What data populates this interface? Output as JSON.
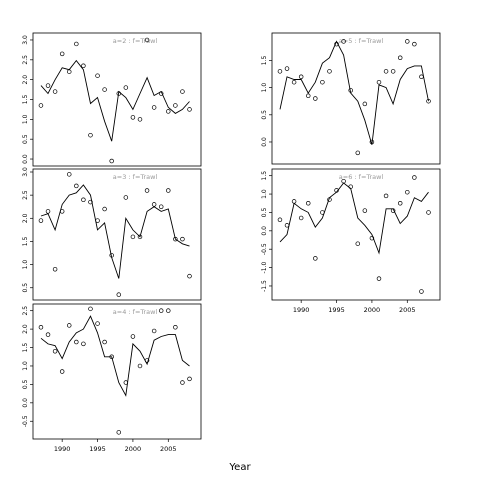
{
  "figure": {
    "xlabel": "Year"
  },
  "chart_data": [
    {
      "type": "scatter",
      "title": "a=2  :  f=Trawl",
      "ylim": [
        -0.1,
        3.1
      ],
      "yticks": [
        0.0,
        0.5,
        1.0,
        1.5,
        2.0,
        2.5,
        3.0
      ],
      "xlim": [
        1986.3,
        2009.2
      ],
      "xticks": [],
      "series": [
        {
          "type": "line",
          "x": [
            1987,
            1988,
            1989,
            1990,
            1991,
            1992,
            1993,
            1994,
            1995,
            1996,
            1997,
            1998,
            1999,
            2000,
            2001,
            2002,
            2003,
            2004,
            2005,
            2006,
            2007,
            2008
          ],
          "y": [
            1.85,
            1.65,
            2.0,
            2.3,
            2.25,
            2.48,
            2.25,
            1.4,
            1.55,
            0.95,
            0.45,
            1.7,
            1.55,
            1.25,
            1.65,
            2.05,
            1.6,
            1.7,
            1.3,
            1.15,
            1.25,
            1.45
          ]
        },
        {
          "type": "points",
          "x": [
            1987,
            1988,
            1989,
            1990,
            1991,
            1992,
            1993,
            1994,
            1995,
            1996,
            1997,
            1998,
            1999,
            2000,
            2001,
            2002,
            2003,
            2004,
            2005,
            2006,
            2007,
            2008
          ],
          "y": [
            1.35,
            1.85,
            1.7,
            2.65,
            2.2,
            2.9,
            2.35,
            0.6,
            2.1,
            1.75,
            -0.05,
            1.65,
            1.8,
            1.05,
            1.0,
            3.0,
            1.3,
            1.65,
            1.2,
            1.35,
            1.7,
            1.25
          ]
        }
      ]
    },
    {
      "type": "scatter",
      "title": "a=3  :  f=Trawl",
      "ylim": [
        0.3,
        3.0
      ],
      "yticks": [
        0.5,
        1.0,
        1.5,
        2.0,
        2.5,
        3.0
      ],
      "xlim": [
        1986.3,
        2009.2
      ],
      "xticks": [],
      "series": [
        {
          "type": "line",
          "x": [
            1987,
            1988,
            1989,
            1990,
            1991,
            1992,
            1993,
            1994,
            1995,
            1996,
            1997,
            1998,
            1999,
            2000,
            2001,
            2002,
            2003,
            2004,
            2005,
            2006,
            2007,
            2008
          ],
          "y": [
            2.05,
            2.1,
            1.75,
            2.3,
            2.5,
            2.55,
            2.72,
            2.5,
            1.75,
            1.9,
            1.15,
            0.7,
            2.0,
            1.75,
            1.6,
            2.15,
            2.25,
            2.15,
            2.2,
            1.55,
            1.45,
            1.4
          ]
        },
        {
          "type": "points",
          "x": [
            1987,
            1988,
            1989,
            1990,
            1991,
            1992,
            1993,
            1994,
            1995,
            1996,
            1997,
            1998,
            1999,
            2000,
            2001,
            2002,
            2003,
            2004,
            2005,
            2006,
            2007,
            2008
          ],
          "y": [
            1.95,
            2.15,
            0.9,
            2.15,
            2.95,
            2.7,
            2.4,
            2.35,
            1.95,
            2.2,
            1.2,
            0.35,
            2.45,
            1.6,
            1.6,
            2.6,
            2.3,
            2.25,
            2.6,
            1.55,
            1.55,
            0.75
          ]
        }
      ]
    },
    {
      "type": "scatter",
      "title": "a=4  :  f=Trawl",
      "ylim": [
        -0.9,
        2.6
      ],
      "yticks": [
        -0.5,
        0.0,
        0.5,
        1.0,
        1.5,
        2.0,
        2.5
      ],
      "xlim": [
        1986.3,
        2009.2
      ],
      "xticks": [
        1990,
        1995,
        2000,
        2005
      ],
      "series": [
        {
          "type": "line",
          "x": [
            1987,
            1988,
            1989,
            1990,
            1991,
            1992,
            1993,
            1994,
            1995,
            1996,
            1997,
            1998,
            1999,
            2000,
            2001,
            2002,
            2003,
            2004,
            2005,
            2006,
            2007,
            2008
          ],
          "y": [
            1.75,
            1.6,
            1.55,
            1.2,
            1.65,
            1.9,
            2.0,
            2.35,
            1.9,
            1.25,
            1.25,
            0.55,
            0.2,
            1.6,
            1.4,
            1.05,
            1.7,
            1.8,
            1.85,
            1.85,
            1.15,
            1.0
          ]
        },
        {
          "type": "points",
          "x": [
            1987,
            1988,
            1989,
            1990,
            1991,
            1992,
            1993,
            1994,
            1995,
            1996,
            1997,
            1998,
            1999,
            2000,
            2001,
            2002,
            2003,
            2004,
            2005,
            2006,
            2007,
            2008
          ],
          "y": [
            2.05,
            1.85,
            1.4,
            0.85,
            2.1,
            1.65,
            1.6,
            2.55,
            2.15,
            1.65,
            1.25,
            -0.8,
            0.55,
            1.8,
            1.0,
            1.15,
            1.95,
            2.5,
            2.5,
            2.05,
            0.55,
            0.65
          ]
        }
      ]
    },
    {
      "type": "scatter",
      "title": "a=5  :  f=Trawl",
      "ylim": [
        -0.35,
        1.95
      ],
      "yticks": [
        0.0,
        0.5,
        1.0,
        1.5
      ],
      "xlim": [
        1986.3,
        2009.2
      ],
      "xticks": [],
      "series": [
        {
          "type": "line",
          "x": [
            1987,
            1988,
            1989,
            1990,
            1991,
            1992,
            1993,
            1994,
            1995,
            1996,
            1997,
            1998,
            1999,
            2000,
            2001,
            2002,
            2003,
            2004,
            2005,
            2006,
            2007,
            2008
          ],
          "y": [
            0.6,
            1.2,
            1.15,
            1.15,
            0.9,
            1.1,
            1.45,
            1.55,
            1.85,
            1.6,
            0.9,
            0.75,
            0.4,
            -0.05,
            1.05,
            1.0,
            0.7,
            1.15,
            1.35,
            1.4,
            1.4,
            0.75
          ]
        },
        {
          "type": "points",
          "x": [
            1987,
            1988,
            1989,
            1990,
            1991,
            1992,
            1993,
            1994,
            1995,
            1996,
            1997,
            1998,
            1999,
            2000,
            2001,
            2002,
            2003,
            2004,
            2005,
            2006,
            2007,
            2008
          ],
          "y": [
            1.3,
            1.35,
            1.1,
            1.2,
            0.85,
            0.8,
            1.1,
            1.3,
            1.8,
            1.85,
            0.95,
            -0.2,
            0.7,
            0.0,
            1.1,
            1.3,
            1.3,
            1.55,
            1.85,
            1.8,
            1.2,
            0.75
          ]
        }
      ]
    },
    {
      "type": "scatter",
      "title": "a=6  :  f=Trawl",
      "ylim": [
        -1.8,
        1.6
      ],
      "yticks": [
        -1.5,
        -1.0,
        -0.5,
        0.0,
        0.5,
        1.0,
        1.5
      ],
      "xlim": [
        1986.3,
        2009.2
      ],
      "xticks": [
        1990,
        1995,
        2000,
        2005
      ],
      "series": [
        {
          "type": "line",
          "x": [
            1987,
            1988,
            1989,
            1990,
            1991,
            1992,
            1993,
            1994,
            1995,
            1996,
            1997,
            1998,
            1999,
            2000,
            2001,
            2002,
            2003,
            2004,
            2005,
            2006,
            2007,
            2008
          ],
          "y": [
            -0.3,
            -0.1,
            0.75,
            0.6,
            0.5,
            0.1,
            0.35,
            0.9,
            1.05,
            1.3,
            1.15,
            0.35,
            0.15,
            -0.1,
            -0.6,
            0.6,
            0.6,
            0.2,
            0.4,
            0.9,
            0.8,
            1.05
          ]
        },
        {
          "type": "points",
          "x": [
            1987,
            1988,
            1989,
            1990,
            1991,
            1992,
            1993,
            1994,
            1995,
            1996,
            1997,
            1998,
            1999,
            2000,
            2001,
            2002,
            2003,
            2004,
            2005,
            2006,
            2007,
            2008
          ],
          "y": [
            0.3,
            0.15,
            0.8,
            0.35,
            0.75,
            -0.75,
            0.5,
            0.85,
            1.1,
            1.35,
            1.2,
            -0.35,
            0.55,
            -0.2,
            -1.3,
            0.95,
            0.55,
            0.75,
            1.05,
            1.45,
            -1.65,
            0.5
          ]
        }
      ]
    }
  ]
}
